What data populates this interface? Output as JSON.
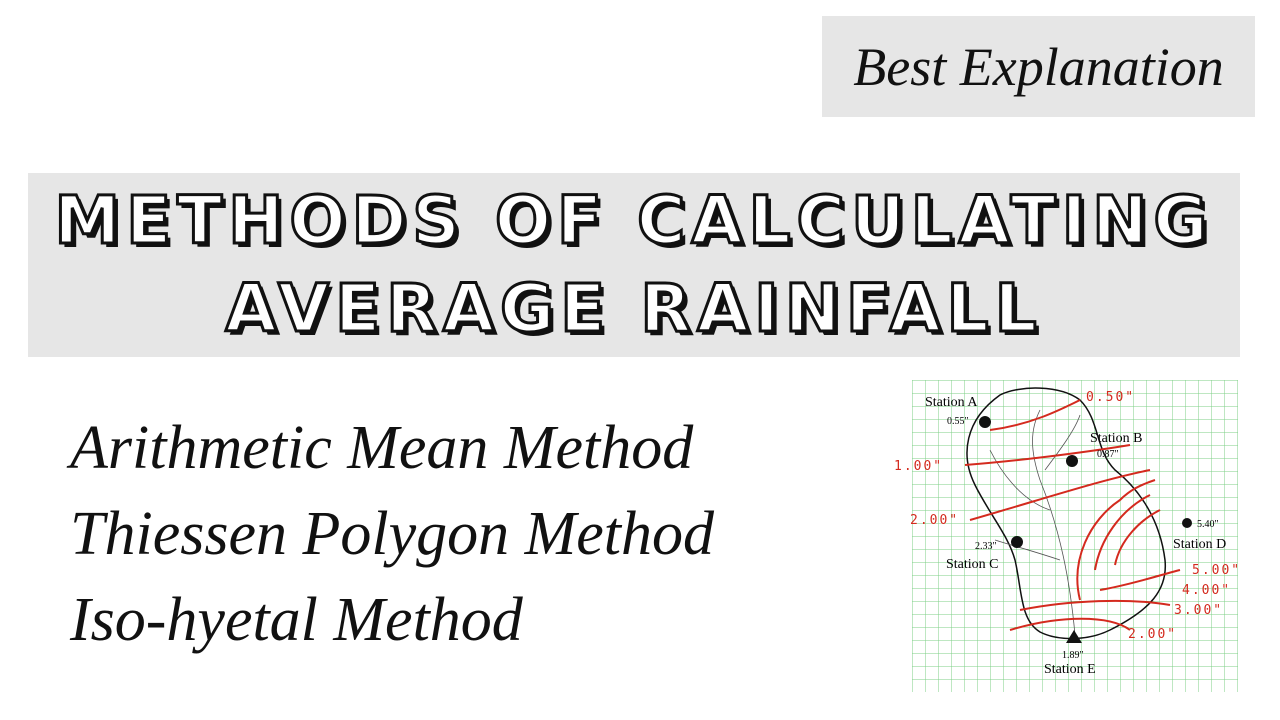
{
  "badge": "Best Explanation",
  "title": {
    "line1": "METHODS OF CALCULATING",
    "line2": "AVERAGE RAINFALL"
  },
  "methods": [
    "Arithmetic Mean Method",
    "Thiessen Polygon Method",
    "Iso-hyetal Method"
  ],
  "diagram": {
    "stations": [
      {
        "name": "Station A",
        "value": "0.55\""
      },
      {
        "name": "Station B",
        "value": "0.87\""
      },
      {
        "name": "Station C",
        "value": "2.33\""
      },
      {
        "name": "Station D",
        "value": "5.40\""
      },
      {
        "name": "Station E",
        "value": "1.89\""
      }
    ],
    "isohyets": [
      "0.50\"",
      "1.00\"",
      "2.00\"",
      "5.00\"",
      "4.00\"",
      "3.00\"",
      "2.00\""
    ]
  }
}
